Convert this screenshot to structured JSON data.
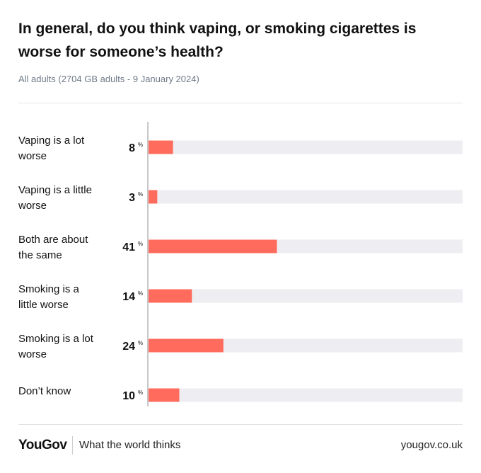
{
  "title": "In general, do you think vaping, or smoking cigarettes is worse for someone’s health?",
  "subtitle": "All adults (2704 GB adults - 9 January 2024)",
  "chart_data": {
    "type": "bar",
    "orientation": "horizontal",
    "categories": [
      [
        "Vaping is a lot",
        "worse"
      ],
      [
        "Vaping is a little",
        "worse"
      ],
      [
        "Both are about",
        "the same"
      ],
      [
        "Smoking is a",
        "little worse"
      ],
      [
        "Smoking is a lot",
        "worse"
      ],
      [
        "Don’t know"
      ]
    ],
    "values": [
      8,
      3,
      41,
      14,
      24,
      10
    ],
    "unit": "%",
    "xlim": [
      0,
      100
    ],
    "bar_color": "#ff6b5c",
    "track_color": "#eeeef2",
    "axis_color": "#c8c8c8"
  },
  "footer": {
    "logo": "YouGov",
    "tagline": "What the world thinks",
    "site": "yougov.co.uk"
  }
}
